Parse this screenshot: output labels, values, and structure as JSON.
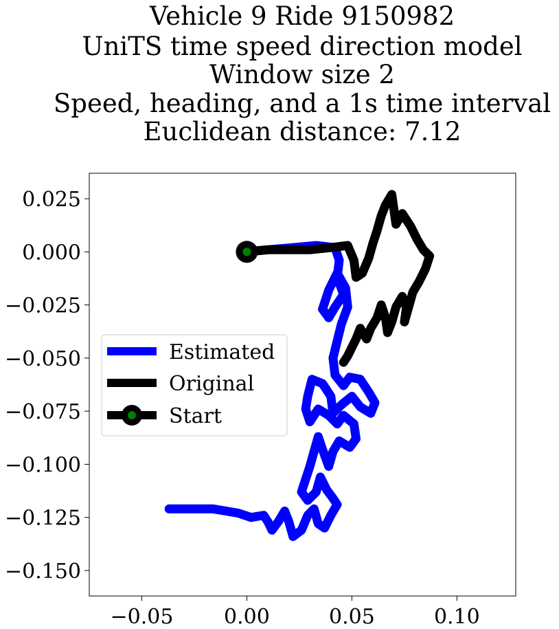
{
  "chart_data": {
    "type": "line",
    "title_lines": [
      "Vehicle 9 Ride 9150982",
      "UniTS time speed direction model",
      "Window size 2",
      "Speed, heading, and a 1s time interval",
      "Euclidean distance: 7.12"
    ],
    "xlim": [
      -0.075,
      0.128
    ],
    "ylim": [
      -0.162,
      0.037
    ],
    "xticks": [
      -0.05,
      0.0,
      0.05,
      0.1
    ],
    "xtick_labels": [
      "−0.05",
      "0.00",
      "0.05",
      "0.10"
    ],
    "yticks": [
      0.025,
      0.0,
      -0.025,
      -0.05,
      -0.075,
      -0.1,
      -0.125,
      -0.15
    ],
    "ytick_labels": [
      "0.025",
      "0.000",
      "−0.025",
      "−0.050",
      "−0.075",
      "−0.100",
      "−0.125",
      "−0.150"
    ],
    "legend_position": "center-left",
    "series": [
      {
        "name": "Estimated",
        "color": "#0000ff",
        "points": [
          [
            0.0,
            0.0
          ],
          [
            0.01,
            0.001
          ],
          [
            0.022,
            0.002
          ],
          [
            0.033,
            0.003
          ],
          [
            0.042,
            0.002
          ],
          [
            0.044,
            -0.004
          ],
          [
            0.043,
            -0.012
          ],
          [
            0.046,
            -0.02
          ],
          [
            0.042,
            -0.026
          ],
          [
            0.039,
            -0.031
          ],
          [
            0.036,
            -0.027
          ],
          [
            0.039,
            -0.018
          ],
          [
            0.043,
            -0.01
          ],
          [
            0.047,
            -0.017
          ],
          [
            0.048,
            -0.026
          ],
          [
            0.045,
            -0.034
          ],
          [
            0.043,
            -0.042
          ],
          [
            0.041,
            -0.05
          ],
          [
            0.042,
            -0.058
          ],
          [
            0.046,
            -0.063
          ],
          [
            0.049,
            -0.059
          ],
          [
            0.054,
            -0.06
          ],
          [
            0.058,
            -0.066
          ],
          [
            0.061,
            -0.071
          ],
          [
            0.059,
            -0.076
          ],
          [
            0.054,
            -0.073
          ],
          [
            0.05,
            -0.068
          ],
          [
            0.045,
            -0.072
          ],
          [
            0.041,
            -0.076
          ],
          [
            0.04,
            -0.068
          ],
          [
            0.036,
            -0.062
          ],
          [
            0.031,
            -0.06
          ],
          [
            0.029,
            -0.068
          ],
          [
            0.028,
            -0.074
          ],
          [
            0.03,
            -0.08
          ],
          [
            0.034,
            -0.074
          ],
          [
            0.039,
            -0.077
          ],
          [
            0.043,
            -0.081
          ],
          [
            0.046,
            -0.077
          ],
          [
            0.051,
            -0.081
          ],
          [
            0.052,
            -0.088
          ],
          [
            0.049,
            -0.092
          ],
          [
            0.044,
            -0.089
          ],
          [
            0.041,
            -0.094
          ],
          [
            0.039,
            -0.101
          ],
          [
            0.036,
            -0.093
          ],
          [
            0.034,
            -0.087
          ],
          [
            0.032,
            -0.094
          ],
          [
            0.03,
            -0.101
          ],
          [
            0.028,
            -0.107
          ],
          [
            0.026,
            -0.113
          ],
          [
            0.029,
            -0.117
          ],
          [
            0.033,
            -0.113
          ],
          [
            0.035,
            -0.106
          ],
          [
            0.038,
            -0.112
          ],
          [
            0.041,
            -0.116
          ],
          [
            0.043,
            -0.119
          ],
          [
            0.04,
            -0.124
          ],
          [
            0.037,
            -0.13
          ],
          [
            0.034,
            -0.128
          ],
          [
            0.032,
            -0.121
          ],
          [
            0.029,
            -0.124
          ],
          [
            0.026,
            -0.131
          ],
          [
            0.022,
            -0.134
          ],
          [
            0.02,
            -0.127
          ],
          [
            0.018,
            -0.122
          ],
          [
            0.015,
            -0.127
          ],
          [
            0.012,
            -0.131
          ],
          [
            0.01,
            -0.127
          ],
          [
            0.008,
            -0.124
          ],
          [
            0.002,
            -0.125
          ],
          [
            -0.004,
            -0.123
          ],
          [
            -0.01,
            -0.122
          ],
          [
            -0.016,
            -0.121
          ],
          [
            -0.022,
            -0.121
          ],
          [
            -0.03,
            -0.121
          ],
          [
            -0.037,
            -0.121
          ]
        ]
      },
      {
        "name": "Original",
        "color": "#000000",
        "points": [
          [
            0.0,
            0.0
          ],
          [
            0.01,
            0.001
          ],
          [
            0.02,
            0.001
          ],
          [
            0.03,
            0.001
          ],
          [
            0.04,
            0.002
          ],
          [
            0.048,
            0.003
          ],
          [
            0.051,
            -0.004
          ],
          [
            0.052,
            -0.012
          ],
          [
            0.055,
            -0.01
          ],
          [
            0.058,
            -0.003
          ],
          [
            0.06,
            0.004
          ],
          [
            0.062,
            0.01
          ],
          [
            0.064,
            0.017
          ],
          [
            0.066,
            0.022
          ],
          [
            0.069,
            0.027
          ],
          [
            0.07,
            0.02
          ],
          [
            0.071,
            0.013
          ],
          [
            0.074,
            0.018
          ],
          [
            0.078,
            0.012
          ],
          [
            0.081,
            0.006
          ],
          [
            0.084,
            0.001
          ],
          [
            0.087,
            -0.002
          ],
          [
            0.085,
            -0.008
          ],
          [
            0.082,
            -0.014
          ],
          [
            0.079,
            -0.019
          ],
          [
            0.077,
            -0.026
          ],
          [
            0.075,
            -0.033
          ],
          [
            0.076,
            -0.026
          ],
          [
            0.074,
            -0.021
          ],
          [
            0.071,
            -0.026
          ],
          [
            0.069,
            -0.033
          ],
          [
            0.067,
            -0.038
          ],
          [
            0.066,
            -0.031
          ],
          [
            0.064,
            -0.025
          ],
          [
            0.062,
            -0.031
          ],
          [
            0.059,
            -0.036
          ],
          [
            0.057,
            -0.041
          ],
          [
            0.054,
            -0.036
          ],
          [
            0.052,
            -0.041
          ],
          [
            0.05,
            -0.045
          ],
          [
            0.048,
            -0.049
          ],
          [
            0.046,
            -0.052
          ]
        ]
      }
    ],
    "start_point": {
      "name": "Start",
      "x": 0.0,
      "y": 0.0,
      "marker_color": "#008000"
    }
  }
}
